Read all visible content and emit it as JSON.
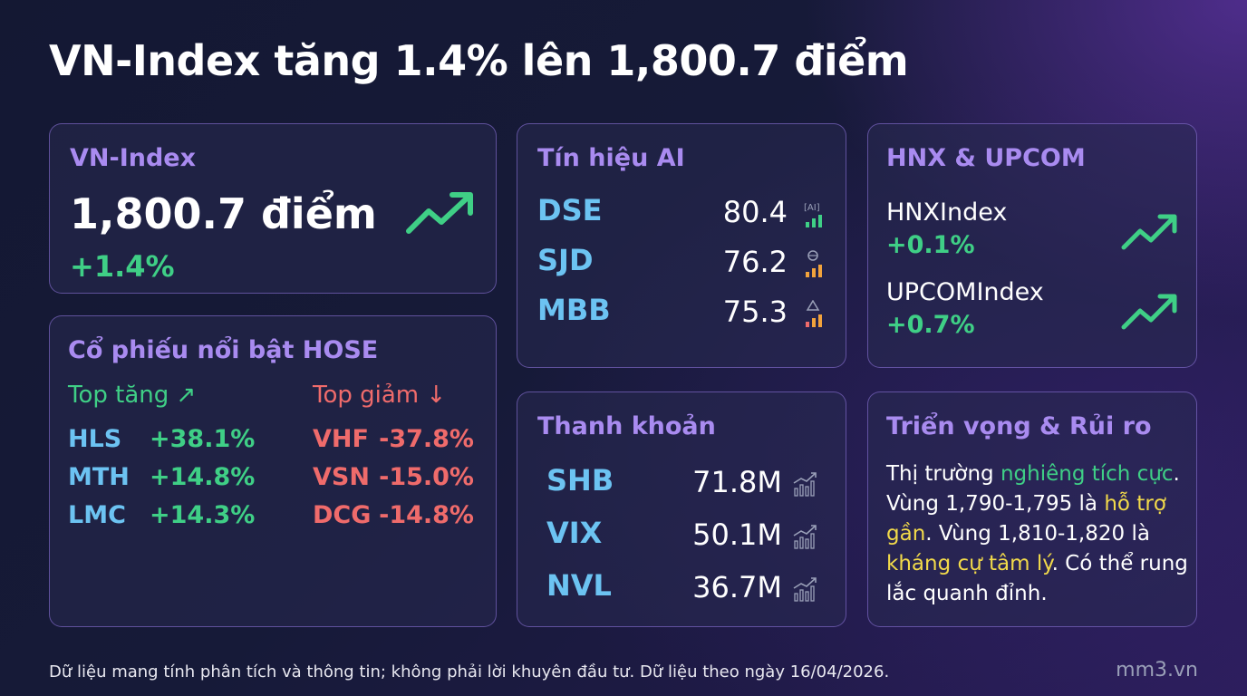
{
  "title": "VN-Index tăng 1.4% lên 1,800.7 điểm",
  "vn_index": {
    "label": "VN-Index",
    "value": "1,800.7 điểm",
    "change": "+1.4%"
  },
  "ai_signals": {
    "title": "Tín hiệu AI",
    "rows": [
      {
        "ticker": "DSE",
        "score": "80.4",
        "icon": "ai-signal-icon"
      },
      {
        "ticker": "SJD",
        "score": "76.2",
        "icon": "brain-signal-icon"
      },
      {
        "ticker": "MBB",
        "score": "75.3",
        "icon": "warning-signal-icon"
      }
    ]
  },
  "hnx_upcom": {
    "title": "HNX & UPCOM",
    "items": [
      {
        "name": "HNXIndex",
        "change": "+0.1%"
      },
      {
        "name": "UPCOMIndex",
        "change": "+0.7%"
      }
    ]
  },
  "top_movers": {
    "title": "Cổ phiếu nổi bật HOSE",
    "gainers_label": "Top tăng ↗",
    "losers_label": "Top giảm ↓",
    "gainers": [
      {
        "ticker": "HLS",
        "pct": "+38.1%"
      },
      {
        "ticker": "MTH",
        "pct": "+14.8%"
      },
      {
        "ticker": "LMC",
        "pct": "+14.3%"
      }
    ],
    "losers": [
      {
        "ticker": "VHF",
        "pct": "-37.8%"
      },
      {
        "ticker": "VSN",
        "pct": "-15.0%"
      },
      {
        "ticker": "DCG",
        "pct": "-14.8%"
      }
    ]
  },
  "liquidity": {
    "title": "Thanh khoản",
    "rows": [
      {
        "ticker": "SHB",
        "value": "71.8M"
      },
      {
        "ticker": "VIX",
        "value": "50.1M"
      },
      {
        "ticker": "NVL",
        "value": "36.7M"
      }
    ]
  },
  "outlook": {
    "title": "Triển vọng & Rủi ro",
    "parts": [
      {
        "text": "Thị trường ",
        "style": "normal"
      },
      {
        "text": "nghiêng tích cực",
        "style": "green"
      },
      {
        "text": ". Vùng 1,790-1,795 là ",
        "style": "normal"
      },
      {
        "text": "hỗ trợ gần",
        "style": "yellow"
      },
      {
        "text": ". Vùng 1,810-1,820 là ",
        "style": "normal"
      },
      {
        "text": "kháng cự tâm lý",
        "style": "yellow"
      },
      {
        "text": ". Có thể rung lắc quanh đỉnh.",
        "style": "normal"
      }
    ]
  },
  "footer": "Dữ liệu mang tính phân tích và thông tin; không phải lời khuyên đầu tư. Dữ liệu theo ngày 16/04/2026.",
  "brand": "mm3.vn",
  "colors": {
    "accent_purple": "#a98bf0",
    "up_green": "#3fcf86",
    "down_red": "#ef6b6b",
    "ticker_blue": "#6cc3f2",
    "highlight_yellow": "#f2da4a"
  }
}
